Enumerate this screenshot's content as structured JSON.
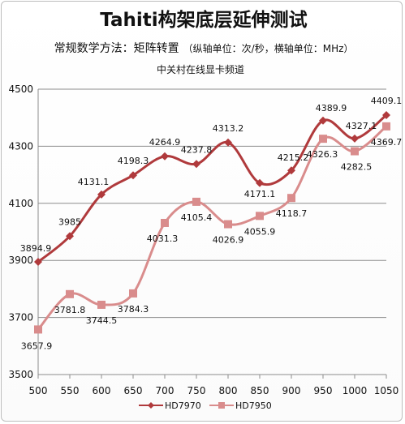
{
  "chart_data": {
    "type": "line",
    "title": "Tahiti构架底层延伸测试",
    "subtitle": "常规数学方法：矩阵转置",
    "subtitle_note": "（纵轴单位：次/秒，横轴单位：MHz）",
    "source": "中关村在线显卡频道",
    "categories": [
      "500",
      "550",
      "600",
      "650",
      "700",
      "750",
      "800",
      "850",
      "900",
      "950",
      "1000",
      "1050"
    ],
    "y_ticks": [
      "3500",
      "3700",
      "3900",
      "4100",
      "4300",
      "4500"
    ],
    "ylim": [
      3500,
      4500
    ],
    "grid": true,
    "legend_position": "bottom",
    "series": [
      {
        "name": "HD7970",
        "color": "#b03a3c",
        "marker": "diamond",
        "values": [
          3894.9,
          3985,
          4131.1,
          4198.3,
          4264.9,
          4237.8,
          4313.2,
          4171.1,
          4215.2,
          4389.9,
          4327.1,
          4409.1
        ],
        "labels": [
          "3894.9",
          "3985",
          "4131.1",
          "4198.3",
          "4264.9",
          "4237.8",
          "4313.2",
          "4171.1",
          "4215.2",
          "4389.9",
          "4327.1",
          "4409.1"
        ]
      },
      {
        "name": "HD7950",
        "color": "#d98c8c",
        "marker": "square",
        "values": [
          3657.9,
          3781.8,
          3744.5,
          3784.3,
          4031.3,
          4105.4,
          4026.9,
          4055.9,
          4118.7,
          4326.3,
          4282.5,
          4369.7
        ],
        "labels": [
          "3657.9",
          "3781.8",
          "3744.5",
          "3784.3",
          "4031.3",
          "4105.4",
          "4026.9",
          "4055.9",
          "4118.7",
          "4326.3",
          "4282.5",
          "4369.7"
        ]
      }
    ]
  }
}
